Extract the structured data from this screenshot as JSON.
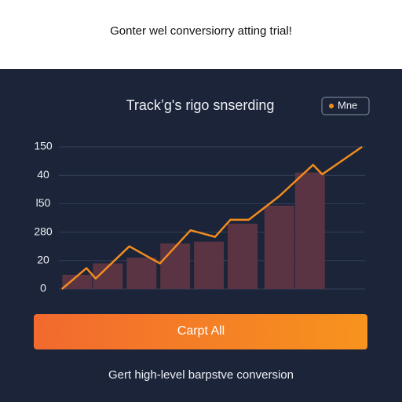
{
  "header": {
    "title": "Gonter wel conversiorry atting trial!"
  },
  "chart_data": {
    "type": "line",
    "title": "Trackʼg's rigo snserding",
    "y_axis_labels": [
      "150",
      "40",
      "l50",
      "280",
      "20",
      "0"
    ],
    "xlim": [
      0,
      100
    ],
    "ylim": [
      0,
      150
    ],
    "grid": true,
    "legend": "top-right",
    "series": [
      {
        "name": "Mne",
        "color": "#f28c1e",
        "x": [
          1,
          9,
          12,
          23,
          33,
          43,
          51,
          56,
          62,
          72,
          83,
          86,
          99
        ],
        "values": [
          0,
          22,
          11,
          45,
          27,
          62,
          55,
          73,
          73,
          98,
          131,
          121,
          150
        ]
      }
    ],
    "bars": {
      "color": "#5a3442",
      "x": [
        6,
        16,
        27,
        38,
        49,
        60,
        72,
        82
      ],
      "values": [
        15,
        27,
        33,
        48,
        50,
        69,
        88,
        123
      ]
    }
  },
  "button": {
    "label": "Carpt All"
  },
  "footer": {
    "text": "Gert high-level barpstve conversion"
  }
}
